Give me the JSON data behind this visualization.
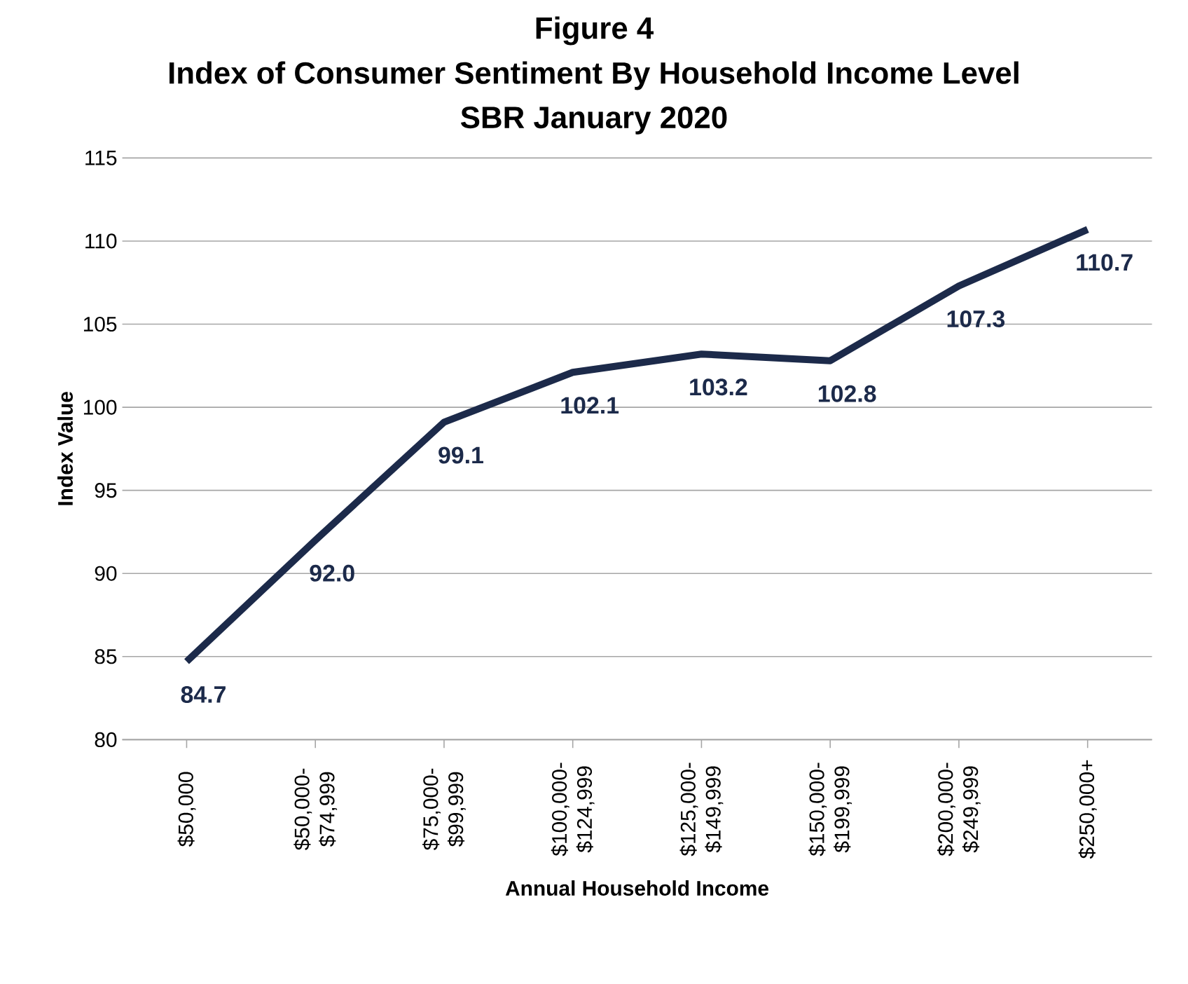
{
  "chart_data": {
    "type": "line",
    "title": "Figure 4",
    "subtitle": "Index of Consumer Sentiment By Household Income Level",
    "annotations": [
      "SBR January 2020"
    ],
    "xlabel": "Annual Household Income",
    "ylabel": "Index Value",
    "categories": [
      "$50,000",
      "$50,000- $74,999",
      "$75,000- $99,999",
      "$100,000- $124,999",
      "$125,000- $149,999",
      "$150,000- $199,999",
      "$200,000- $249,999",
      "$250,000+"
    ],
    "values": [
      84.7,
      92.0,
      99.1,
      102.1,
      103.2,
      102.8,
      107.3,
      110.7
    ],
    "value_labels": [
      "84.7",
      "92.0",
      "99.1",
      "102.1",
      "103.2",
      "102.8",
      "107.3",
      "110.7"
    ],
    "color": "#1c2a4a",
    "ylim": [
      80,
      115
    ],
    "yticks": [
      80,
      85,
      90,
      95,
      100,
      105,
      110,
      115
    ],
    "grid": "y",
    "marker": "none",
    "line_style": "solid"
  }
}
